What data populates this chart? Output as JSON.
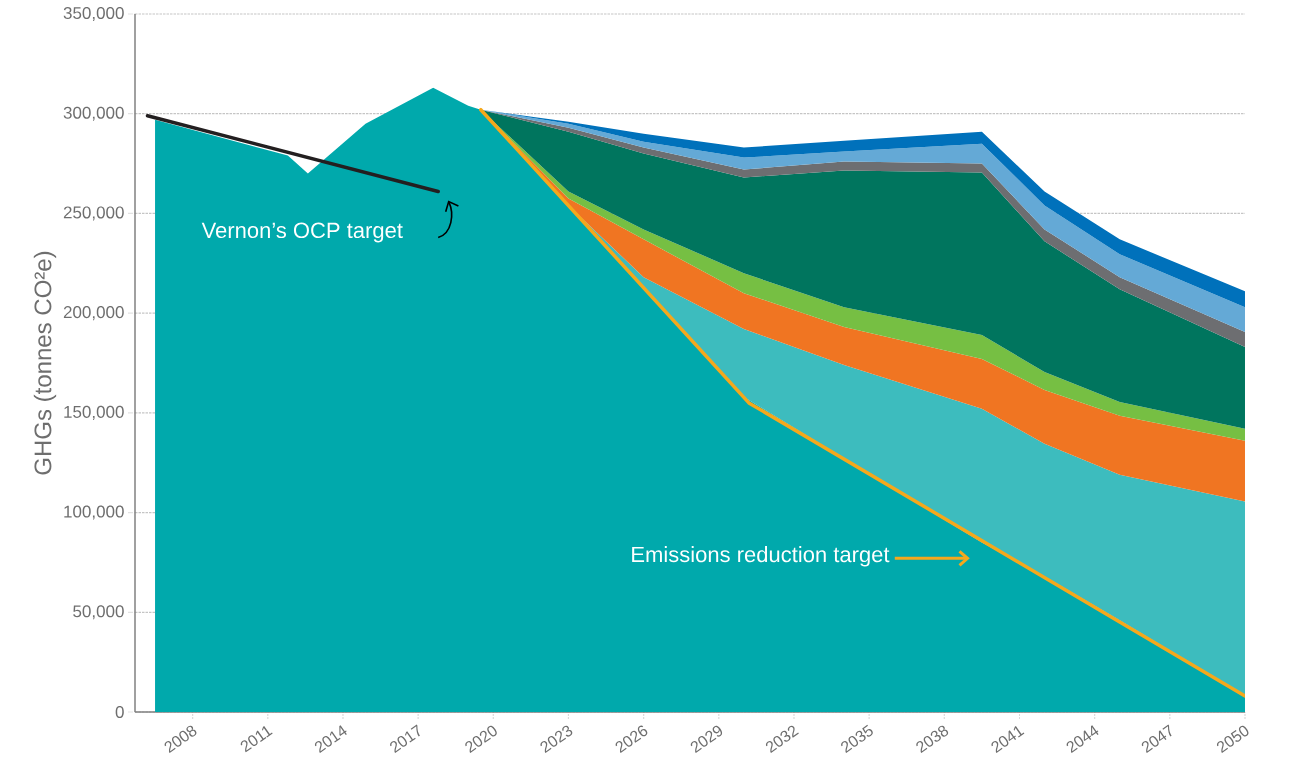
{
  "chart_data": {
    "type": "area",
    "stacked": true,
    "ylabel": "GHGs (tonnes CO²e)",
    "x": [
      2006.5,
      2011.8,
      2012.6,
      2014.9,
      2017.6,
      2019.0,
      2019.5,
      2023,
      2026,
      2030,
      2034,
      2039.5,
      2042,
      2045,
      2050
    ],
    "series": [
      {
        "color": "#00a9ac",
        "values": [
          297000,
          279000,
          270000,
          295000,
          313000,
          304000,
          302000,
          254000,
          213000,
          158000,
          127000,
          85000,
          68000,
          46000,
          8000
        ]
      },
      {
        "color": "#3dbcbe",
        "values": [
          0,
          0,
          0,
          0,
          0,
          0,
          0,
          0,
          5000,
          34000,
          47000,
          67000,
          66500,
          73000,
          97500
        ]
      },
      {
        "color": "#f07522",
        "values": [
          0,
          0,
          0,
          0,
          0,
          0,
          0,
          3500,
          19000,
          18000,
          19000,
          25000,
          27000,
          29500,
          30500
        ]
      },
      {
        "color": "#76bf43",
        "values": [
          0,
          0,
          0,
          0,
          0,
          0,
          0,
          3500,
          5000,
          10000,
          10000,
          12000,
          9000,
          7000,
          6000
        ]
      },
      {
        "color": "#00755e",
        "values": [
          0,
          0,
          0,
          0,
          0,
          0,
          0,
          30000,
          38000,
          48000,
          68500,
          81500,
          65500,
          56500,
          41000
        ]
      },
      {
        "color": "#6d6e71",
        "values": [
          0,
          0,
          0,
          0,
          0,
          0,
          0,
          2000,
          3000,
          4000,
          4500,
          4500,
          6000,
          6000,
          7500
        ]
      },
      {
        "color": "#64a9d6",
        "values": [
          0,
          0,
          0,
          0,
          0,
          0,
          0,
          2000,
          3000,
          6000,
          5000,
          10000,
          12000,
          11500,
          12500
        ]
      },
      {
        "color": "#0071bb",
        "values": [
          0,
          0,
          0,
          0,
          0,
          0,
          0,
          1000,
          4000,
          5000,
          5500,
          6000,
          7000,
          7500,
          8000
        ]
      },
      {
        "type": "line",
        "color": "#f5a81c",
        "x": [
          2019.5,
          2030.2,
          2050
        ],
        "values": [
          302000,
          155000,
          8000
        ]
      },
      {
        "type": "line",
        "color": "#231f20",
        "x": [
          2006.2,
          2017.8
        ],
        "values": [
          299000,
          261000
        ]
      }
    ],
    "annotations": [
      {
        "text": "Vernon’s OCP target",
        "x": 2017.8,
        "y": 261000
      },
      "Emissions reduction target"
    ],
    "xlim": [
      2005.7,
      2050
    ],
    "ylim": [
      0,
      350000
    ],
    "xticks": [
      2008,
      2011,
      2014,
      2017,
      2020,
      2023,
      2026,
      2029,
      2032,
      2035,
      2038,
      2041,
      2044,
      2047,
      2050
    ],
    "yticks": [
      0,
      {
        "value": 50000,
        "label": "50,000"
      },
      {
        "value": 100000,
        "label": "100,000"
      },
      {
        "value": 150000,
        "label": "150,000"
      },
      {
        "value": 200000,
        "label": "200,000"
      },
      {
        "value": 250000,
        "label": "250,000"
      },
      {
        "value": 300000,
        "label": "300,000"
      },
      {
        "value": 350000,
        "label": "350,000"
      }
    ],
    "grid": "y"
  }
}
